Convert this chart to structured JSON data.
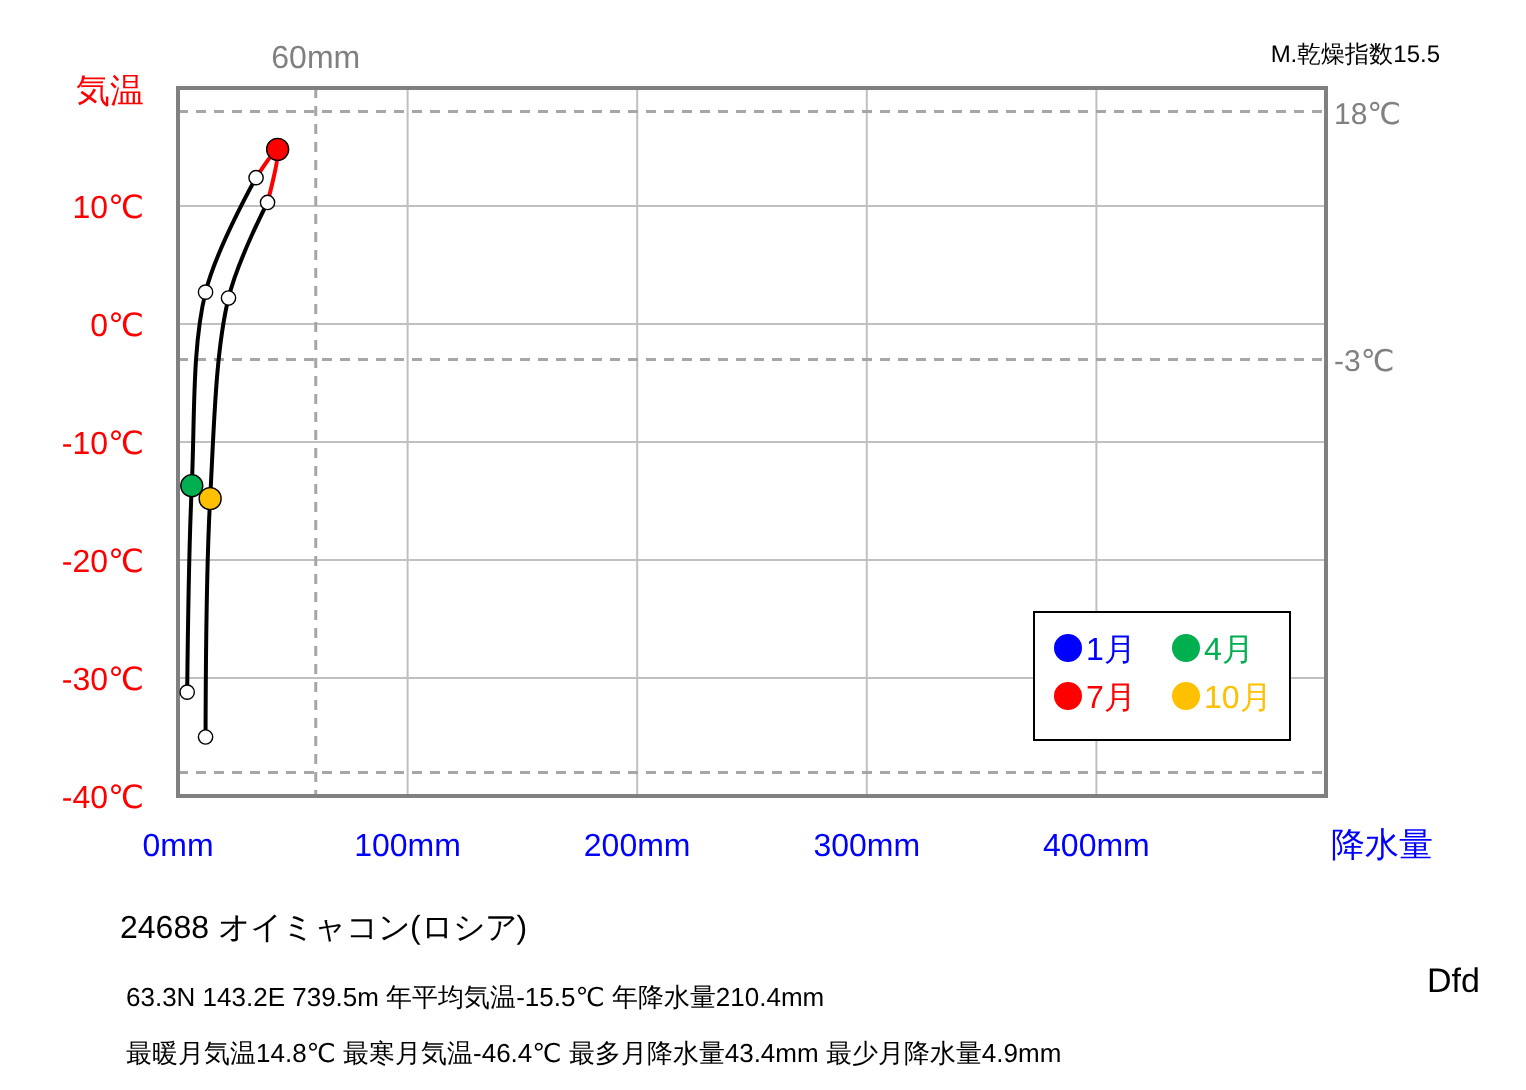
{
  "chart_data": {
    "type": "line",
    "ylabel": "気温",
    "xlabel": "降水量",
    "xlim": [
      0,
      500
    ],
    "xticks": [
      {
        "value": 0,
        "label": "0mm"
      },
      {
        "value": 100,
        "label": "100mm"
      },
      {
        "value": 200,
        "label": "200mm"
      },
      {
        "value": 300,
        "label": "300mm"
      },
      {
        "value": 400,
        "label": "400mm"
      },
      {
        "value": 500,
        "label": null
      }
    ],
    "ylim": [
      -40,
      20
    ],
    "yticks": [
      {
        "value": -40,
        "label": "-40℃"
      },
      {
        "value": -30,
        "label": "-30℃"
      },
      {
        "value": -20,
        "label": "-20℃"
      },
      {
        "value": -10,
        "label": "-10℃"
      },
      {
        "value": 0,
        "label": "0℃"
      },
      {
        "value": 10,
        "label": "10℃"
      },
      {
        "value": 20,
        "label": null
      }
    ],
    "grid": true,
    "legend": "bottom right",
    "series": [
      {
        "color": "#000000",
        "x": [
          4,
          6,
          12,
          34,
          null,
          39,
          22,
          14,
          12
        ],
        "values": [
          -31.2,
          -13.7,
          2.7,
          12.4,
          null,
          10.3,
          2.2,
          -14.8,
          -35
        ]
      },
      {
        "color": "#ff0000",
        "x": [
          34,
          43.4,
          39
        ],
        "values": [
          12.4,
          14.8,
          10.3
        ]
      },
      {
        "type": "scatter",
        "color": "#ffffff",
        "marker": "circle",
        "x": [
          4,
          12,
          34,
          39,
          22,
          12
        ],
        "values": [
          -31.2,
          2.7,
          12.4,
          10.3,
          2.2,
          -35
        ]
      },
      {
        "type": "scatter",
        "name": "1月",
        "color": "#0000ff",
        "marker": "circle",
        "x": [
          null
        ],
        "values": [
          null
        ]
      },
      {
        "type": "scatter",
        "name": "4月",
        "color": "#00b050",
        "marker": "circle",
        "x": [
          6
        ],
        "values": [
          -13.7
        ]
      },
      {
        "type": "scatter",
        "name": "7月",
        "color": "#ff0000",
        "marker": "circle",
        "x": [
          43.4
        ],
        "values": [
          14.8
        ]
      },
      {
        "type": "scatter",
        "name": "10月",
        "color": "#ffc000",
        "marker": "circle",
        "x": [
          14
        ],
        "values": [
          -14.8
        ]
      }
    ],
    "ref_lines": [
      {
        "axis": "y",
        "value": 18,
        "label": "18℃"
      },
      {
        "axis": "y",
        "value": -3,
        "label": "-3℃"
      },
      {
        "axis": "y",
        "value": -38,
        "label": null
      },
      {
        "axis": "x",
        "value": 60,
        "label": "60mm"
      }
    ],
    "annotations": [
      "M.乾燥指数15.5",
      "24688  オイミャコン(ロシア)",
      "63.3N  143.2E  739.5m  年平均気温-15.5℃ 年降水量210.4mm",
      "最暖月気温14.8℃ 最寒月気温-46.4℃ 最多月降水量43.4mm 最少月降水量4.9mm",
      "Dfd"
    ]
  }
}
